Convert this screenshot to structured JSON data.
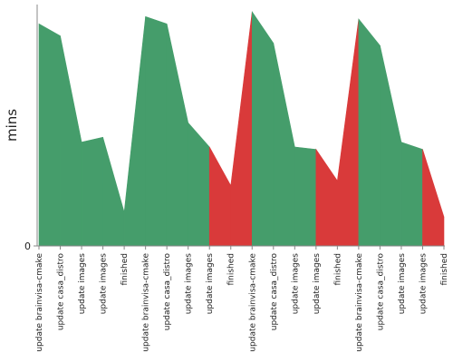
{
  "chart_data": {
    "type": "area",
    "ylabel": "mins",
    "y_ticks": [
      {
        "value": 0,
        "label": "0"
      }
    ],
    "ylim": [
      0,
      100
    ],
    "colors": {
      "good": "#459d6b",
      "bad": "#d93a3a",
      "axis": "#888888"
    },
    "categories": [
      "update brainvisa-cmake",
      "update casa_distro",
      "update images",
      "update images",
      "finished",
      "update brainvisa-cmake",
      "update casa_distro",
      "update images",
      "update images",
      "finished",
      "update brainvisa-cmake",
      "update casa_distro",
      "update images",
      "update images",
      "finished",
      "update brainvisa-cmake",
      "update casa_distro",
      "update images",
      "update images",
      "finished"
    ],
    "values": [
      92,
      87,
      43,
      45,
      14,
      95,
      92,
      51,
      41,
      25,
      97,
      84,
      41,
      40,
      27,
      94,
      83,
      43,
      40,
      12
    ],
    "status": [
      "ok",
      "ok",
      "ok",
      "ok",
      "ok",
      "ok",
      "ok",
      "ok",
      "ok",
      "fail",
      "ok",
      "ok",
      "ok",
      "ok",
      "fail",
      "ok",
      "ok",
      "ok",
      "ok",
      "fail"
    ]
  }
}
